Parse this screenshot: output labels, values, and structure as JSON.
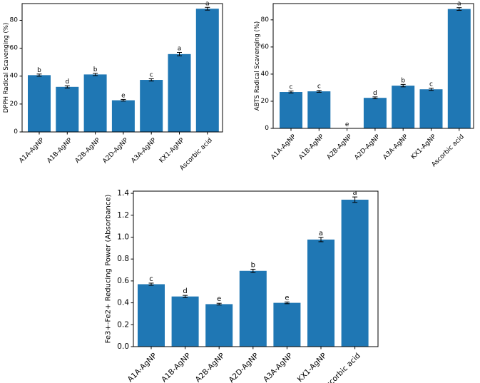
{
  "chart_data": [
    {
      "id": "dpph",
      "type": "bar",
      "title": "",
      "xlabel": "",
      "ylabel": "DPPH Radical Scavenging (%)",
      "ylim": [
        0,
        92
      ],
      "yticks": [
        0,
        20,
        40,
        60,
        80
      ],
      "categories": [
        "A1A-AgNP",
        "A1B-AgNP",
        "A2B-AgNP",
        "A2D-AgNP",
        "A3A-AgNP",
        "KX1-AgNP",
        "Ascorbic acid"
      ],
      "values": [
        40.7,
        32.3,
        41.2,
        22.7,
        37.3,
        55.8,
        88.3
      ],
      "errors": [
        0.8,
        0.8,
        0.8,
        0.6,
        0.8,
        1.2,
        1.0
      ],
      "labels": [
        "b",
        "d",
        "b",
        "e",
        "c",
        "a",
        "a"
      ],
      "color": "#1f77b4"
    },
    {
      "id": "abts",
      "type": "bar",
      "title": "",
      "xlabel": "",
      "ylabel": "ABTS Radical Scavenging (%)",
      "ylim": [
        0,
        92
      ],
      "yticks": [
        0,
        20,
        40,
        60,
        80
      ],
      "categories": [
        "A1A-AgNP",
        "A1B-AgNP",
        "A2B-AgNP",
        "A2D-AgNP",
        "A3A-AgNP",
        "KX1-AgNP",
        "Ascorbic acid"
      ],
      "values": [
        26.8,
        27.3,
        0,
        22.5,
        31.5,
        28.8,
        88.0
      ],
      "errors": [
        0.7,
        0.7,
        0,
        0.7,
        0.9,
        0.8,
        1.0
      ],
      "labels": [
        "c",
        "c",
        "e",
        "d",
        "b",
        "c",
        "a"
      ],
      "color": "#1f77b4"
    },
    {
      "id": "frap",
      "type": "bar",
      "title": "",
      "xlabel": "",
      "ylabel": "Fe3+-Fe2+ Reducing Power (Absorbance)",
      "ylim": [
        0,
        1.42
      ],
      "yticks": [
        0.0,
        0.2,
        0.4,
        0.6,
        0.8,
        1.0,
        1.2,
        1.4
      ],
      "ytick_labels": [
        "0.0",
        "0.2",
        "0.4",
        "0.6",
        "0.8",
        "1.0",
        "1.2",
        "1.4"
      ],
      "categories": [
        "A1A-AgNP",
        "A1B-AgNP",
        "A2B-AgNP",
        "A2D-AgNP",
        "A3A-AgNP",
        "KX1-AgNP",
        "Ascorbic acid"
      ],
      "values": [
        0.57,
        0.458,
        0.388,
        0.692,
        0.4,
        0.978,
        1.342
      ],
      "errors": [
        0.01,
        0.01,
        0.008,
        0.015,
        0.008,
        0.02,
        0.025
      ],
      "labels": [
        "c",
        "d",
        "e",
        "b",
        "e",
        "a",
        "a"
      ],
      "color": "#1f77b4"
    }
  ]
}
